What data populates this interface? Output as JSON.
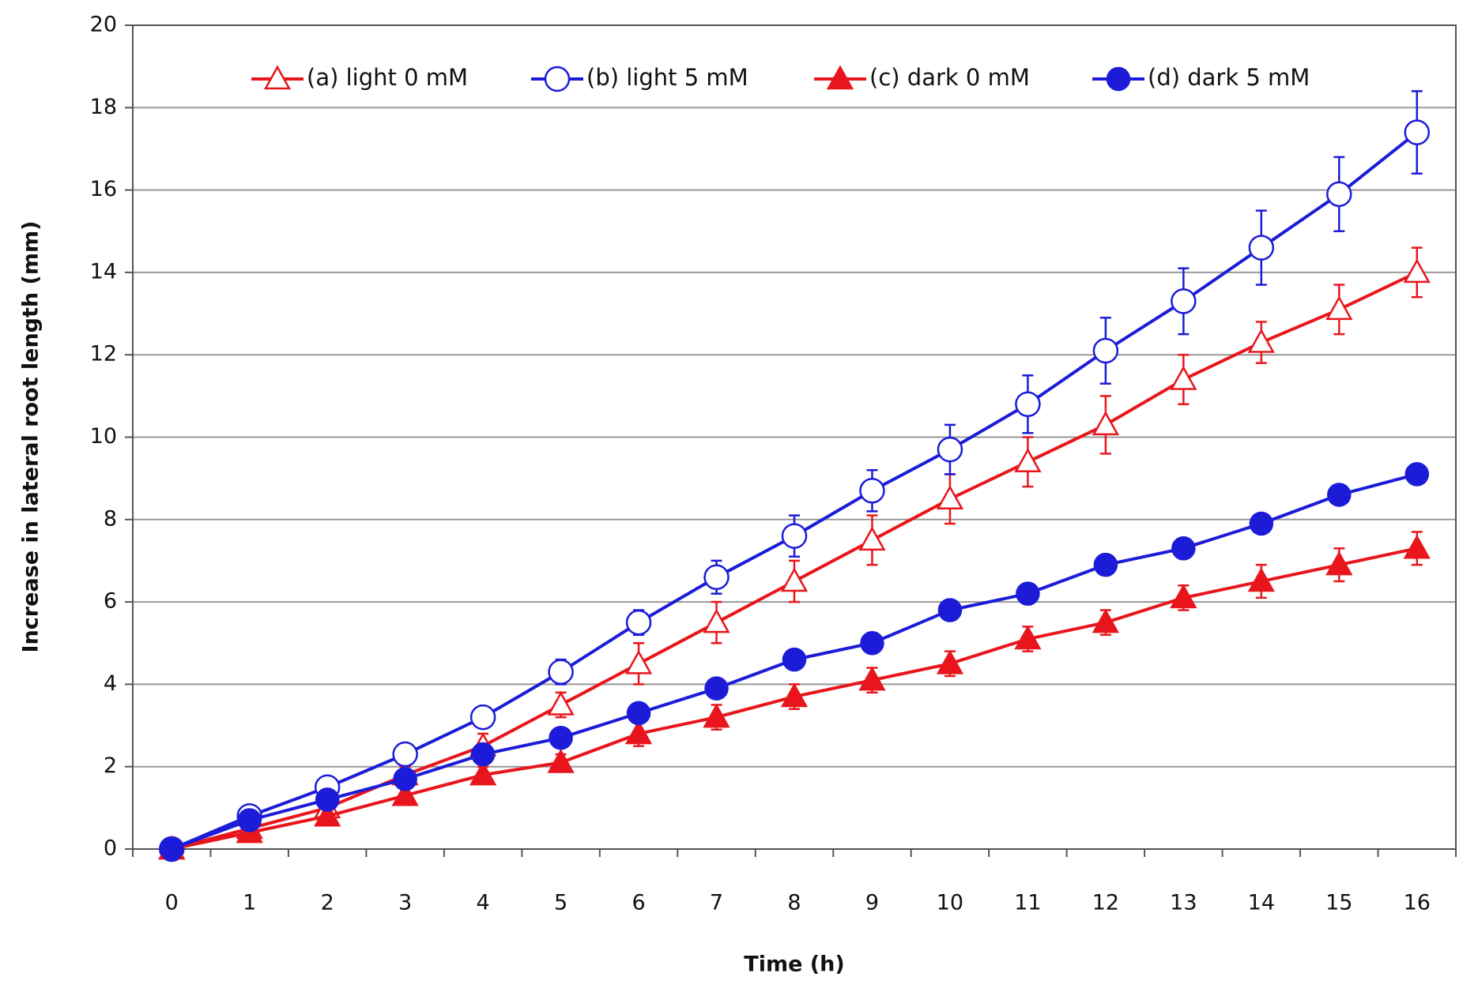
{
  "chart_data": {
    "type": "line",
    "x_label": "Time  (h)",
    "y_label": "Increase in lateral root length (mm)",
    "categories": [
      "0",
      "1",
      "2",
      "3",
      "4",
      "5",
      "6",
      "7",
      "8",
      "9",
      "10",
      "11",
      "12",
      "13",
      "14",
      "15",
      "16"
    ],
    "ylim": [
      0,
      20
    ],
    "yticks": [
      0,
      2,
      4,
      6,
      8,
      10,
      12,
      14,
      16,
      18,
      20
    ],
    "grid": true,
    "legend": "top",
    "series": [
      {
        "name": "(a) light 0 mM",
        "color": "#e8161c",
        "marker": "triangle-open",
        "values": [
          0,
          0.5,
          1.0,
          1.8,
          2.5,
          3.5,
          4.5,
          5.5,
          6.5,
          7.5,
          8.5,
          9.4,
          10.3,
          11.4,
          12.3,
          13.1,
          14.0
        ],
        "errors": [
          0,
          0.2,
          0.2,
          0.2,
          0.3,
          0.3,
          0.5,
          0.5,
          0.5,
          0.6,
          0.6,
          0.6,
          0.7,
          0.6,
          0.5,
          0.6,
          0.6
        ]
      },
      {
        "name": "(b) light 5 mM",
        "color": "#1c1cd8",
        "marker": "circle-open",
        "values": [
          0,
          0.8,
          1.5,
          2.3,
          3.2,
          4.3,
          5.5,
          6.6,
          7.6,
          8.7,
          9.7,
          10.8,
          12.1,
          13.3,
          14.6,
          15.9,
          17.4
        ],
        "errors": [
          0,
          0.1,
          0.2,
          0.2,
          0.2,
          0.3,
          0.3,
          0.4,
          0.5,
          0.5,
          0.6,
          0.7,
          0.8,
          0.8,
          0.9,
          0.9,
          1.0
        ]
      },
      {
        "name": "(c) dark 0 mM",
        "color": "#e8161c",
        "marker": "triangle",
        "values": [
          0,
          0.4,
          0.8,
          1.3,
          1.8,
          2.1,
          2.8,
          3.2,
          3.7,
          4.1,
          4.5,
          5.1,
          5.5,
          6.1,
          6.5,
          6.9,
          7.3
        ],
        "errors": [
          0,
          0.1,
          0.1,
          0.2,
          0.2,
          0.2,
          0.3,
          0.3,
          0.3,
          0.3,
          0.3,
          0.3,
          0.3,
          0.3,
          0.4,
          0.4,
          0.4
        ]
      },
      {
        "name": "(d) dark 5 mM",
        "color": "#1c1cd8",
        "marker": "circle",
        "values": [
          0,
          0.7,
          1.2,
          1.7,
          2.3,
          2.7,
          3.3,
          3.9,
          4.6,
          5.0,
          5.8,
          6.2,
          6.9,
          7.3,
          7.9,
          8.6,
          9.1
        ]
      }
    ]
  }
}
